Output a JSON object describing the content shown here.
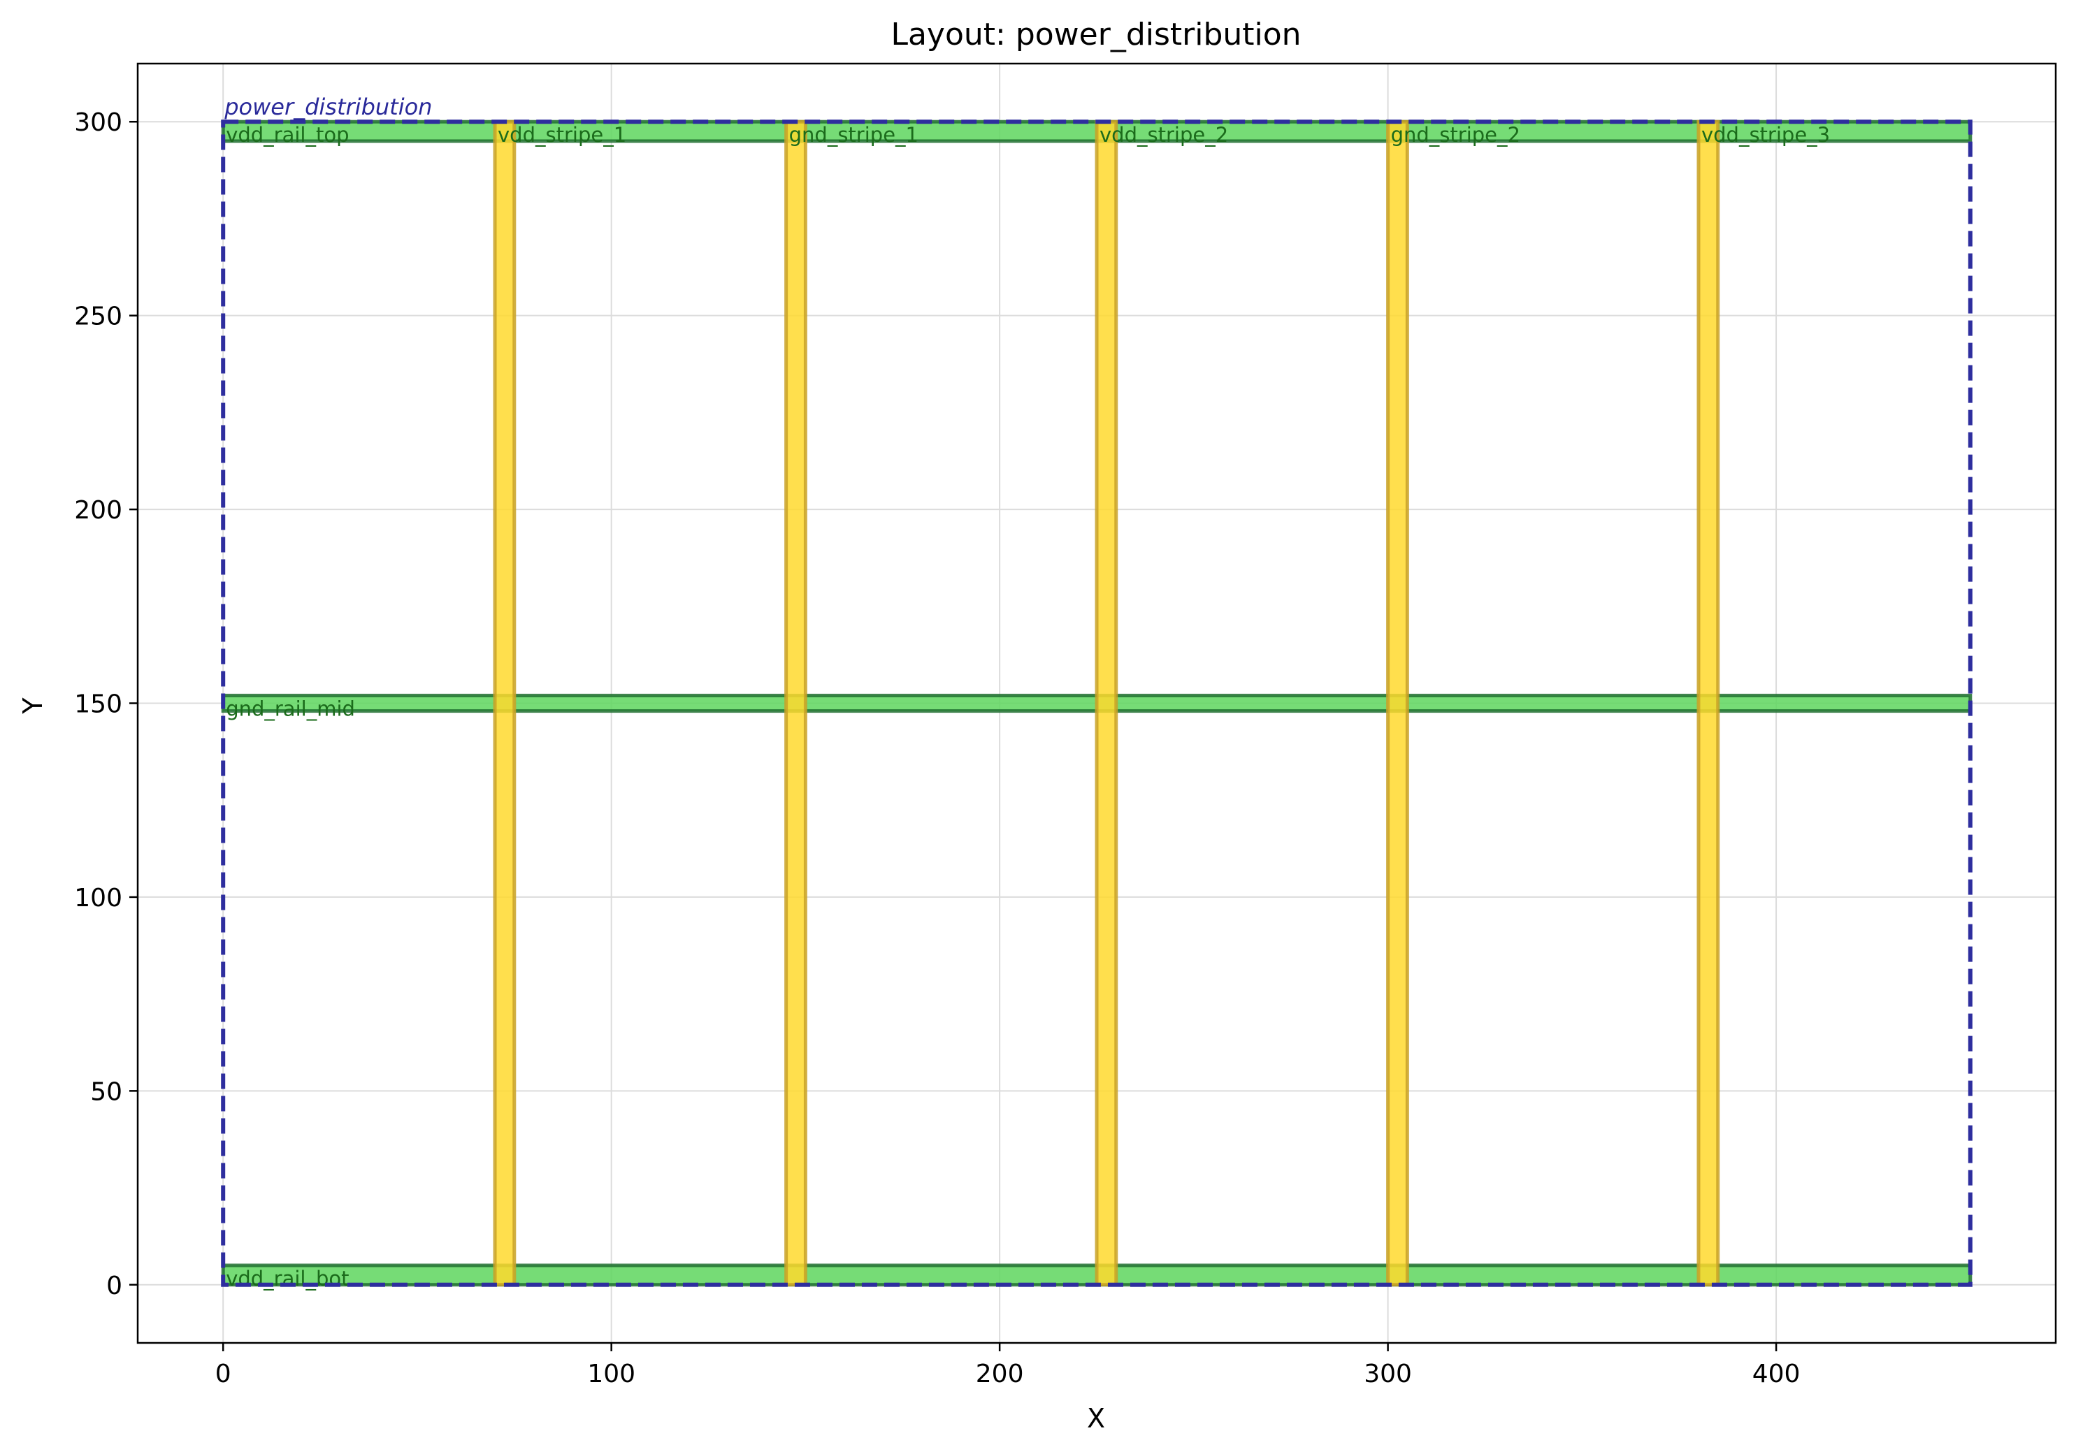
{
  "chart_data": {
    "type": "layout",
    "title": "Layout: power_distribution",
    "xlabel": "X",
    "ylabel": "Y",
    "xlim": [
      -22,
      472
    ],
    "ylim": [
      -15,
      315
    ],
    "x_ticks": [
      0,
      100,
      200,
      300,
      400
    ],
    "y_ticks": [
      0,
      50,
      100,
      150,
      200,
      250,
      300
    ],
    "grid": true,
    "cell": {
      "name": "power_distribution",
      "bbox_data": [
        0,
        0,
        450,
        300
      ],
      "color": "#2e2e9e"
    },
    "layers": {
      "rail": {
        "fill": "#5ed65e",
        "edge": "#1f6f2f"
      },
      "stripe": {
        "fill": "#ffd92e",
        "edge": "#c9a227"
      }
    },
    "rects": [
      {
        "name": "vdd_rail_bot",
        "layer": "rail",
        "x0": 0,
        "y0": 0,
        "x1": 450,
        "y1": 5
      },
      {
        "name": "vdd_rail_top",
        "layer": "rail",
        "x0": 0,
        "y0": 295,
        "x1": 450,
        "y1": 300
      },
      {
        "name": "gnd_rail_mid",
        "layer": "rail",
        "x0": 0,
        "y0": 148,
        "x1": 450,
        "y1": 152
      },
      {
        "name": "vdd_stripe_1",
        "layer": "stripe",
        "x0": 70,
        "y0": 0,
        "x1": 75,
        "y1": 300
      },
      {
        "name": "gnd_stripe_1",
        "layer": "stripe",
        "x0": 145,
        "y0": 0,
        "x1": 150,
        "y1": 300
      },
      {
        "name": "vdd_stripe_2",
        "layer": "stripe",
        "x0": 225,
        "y0": 0,
        "x1": 230,
        "y1": 300
      },
      {
        "name": "gnd_stripe_2",
        "layer": "stripe",
        "x0": 300,
        "y0": 0,
        "x1": 305,
        "y1": 300
      },
      {
        "name": "vdd_stripe_3",
        "layer": "stripe",
        "x0": 380,
        "y0": 0,
        "x1": 385,
        "y1": 300
      }
    ]
  }
}
